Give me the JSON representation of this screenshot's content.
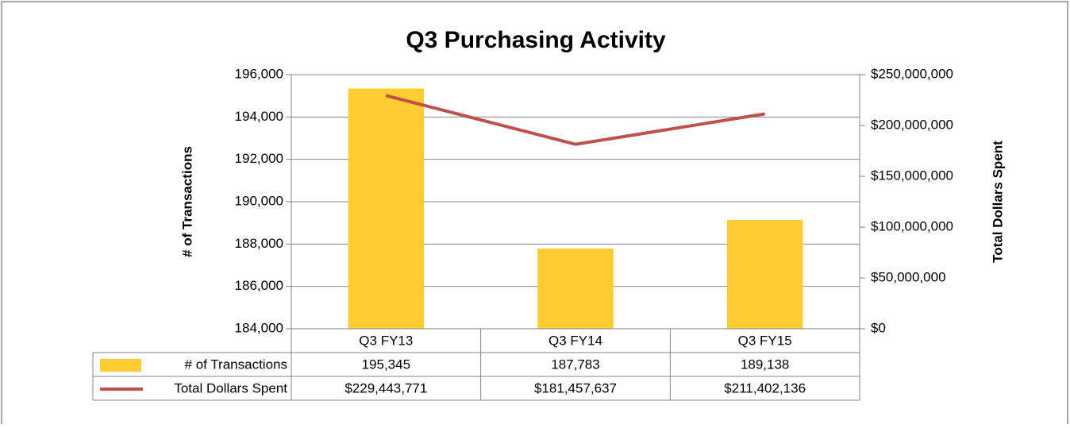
{
  "chart_data": {
    "type": "bar",
    "title": "Q3 Purchasing Activity",
    "y_label": "# of Transactions",
    "y2_label": "Total Dollars Spent",
    "categories": [
      "Q3 FY13",
      "Q3 FY14",
      "Q3 FY15"
    ],
    "series": [
      {
        "name": "# of Transactions",
        "type": "bar",
        "color": "#ffcc32",
        "values": [
          195345,
          187783,
          189138
        ],
        "value_labels": [
          "195,345",
          "187,783",
          "189,138"
        ]
      },
      {
        "name": "Total Dollars Spent",
        "type": "line",
        "axis": "y2",
        "color": "#c0504d",
        "values": [
          229443771,
          181457637,
          211402136
        ],
        "value_labels": [
          "$229,443,771",
          "$181,457,637",
          "$211,402,136"
        ]
      }
    ],
    "ylim": [
      184000,
      196000
    ],
    "yticks": [
      {
        "value": 184000,
        "label": "184,000"
      },
      {
        "value": 186000,
        "label": "186,000"
      },
      {
        "value": 188000,
        "label": "188,000"
      },
      {
        "value": 190000,
        "label": "190,000"
      },
      {
        "value": 192000,
        "label": "192,000"
      },
      {
        "value": 194000,
        "label": "194,000"
      },
      {
        "value": 196000,
        "label": "196,000"
      }
    ],
    "y2lim": [
      0,
      250000000
    ],
    "y2ticks": [
      {
        "value": 0,
        "label": "$0"
      },
      {
        "value": 50000000,
        "label": "$50,000,000"
      },
      {
        "value": 100000000,
        "label": "$100,000,000"
      },
      {
        "value": 150000000,
        "label": "$150,000,000"
      },
      {
        "value": 200000000,
        "label": "$200,000,000"
      },
      {
        "value": 250000000,
        "label": "$250,000,000"
      }
    ],
    "grid": true,
    "data_table": true
  }
}
